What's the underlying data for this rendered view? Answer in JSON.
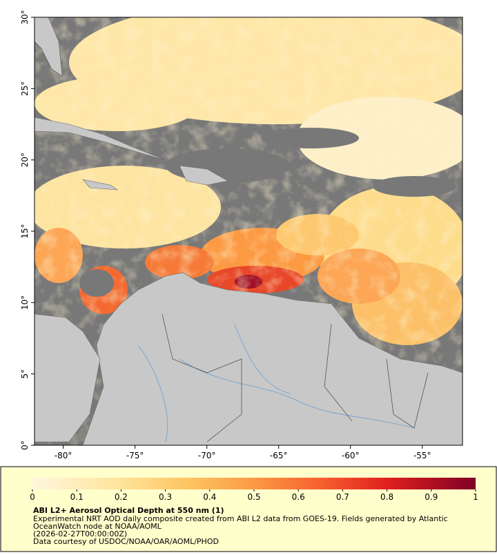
{
  "map": {
    "xlim": [
      -82,
      -52.2
    ],
    "ylim": [
      0,
      30
    ],
    "yticks": [
      {
        "value": 0,
        "label": "0°"
      },
      {
        "value": 5,
        "label": "5°"
      },
      {
        "value": 10,
        "label": "10°"
      },
      {
        "value": 15,
        "label": "15°"
      },
      {
        "value": 20,
        "label": "20°"
      },
      {
        "value": 25,
        "label": "25°"
      },
      {
        "value": 30,
        "label": "30°"
      }
    ],
    "xticks": [
      {
        "value": -80,
        "label": "-80°"
      },
      {
        "value": -75,
        "label": "-75°"
      },
      {
        "value": -70,
        "label": "-70°"
      },
      {
        "value": -65,
        "label": "-65°"
      },
      {
        "value": -60,
        "label": "-60°"
      },
      {
        "value": -55,
        "label": "-55°"
      }
    ]
  },
  "colorbar": {
    "lim": [
      0,
      1
    ],
    "ticks": [
      0,
      0.1,
      0.2,
      0.3,
      0.4,
      0.5,
      0.6,
      0.7,
      0.8,
      0.9,
      1
    ]
  },
  "caption": {
    "title": "ABI L2+ Aerosol Optical Depth at 550 nm (1)",
    "lines": [
      "Experimental NRT AOD daily composite created from ABI L2 data from GOES-19. Fields generated by Atlantic",
      "OceanWatch node at NOAA/AOML",
      "(2026-02-27T00:00:00Z)",
      "Data courtesy of USDOC/NOAA/OAR/AOML/PHOD"
    ]
  }
}
